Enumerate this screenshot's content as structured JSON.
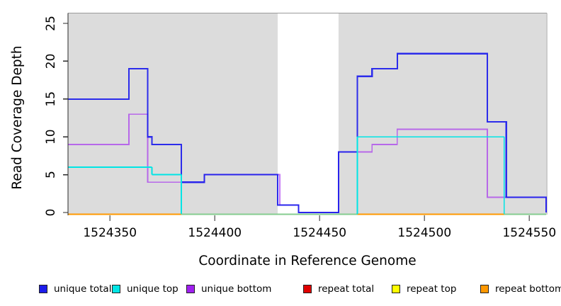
{
  "chart_data": {
    "type": "line",
    "subtype": "step",
    "title": "",
    "xlabel": "Coordinate in Reference Genome",
    "ylabel": "Read Coverage Depth",
    "xlim": [
      1524330,
      1524558
    ],
    "ylim": [
      0,
      25
    ],
    "x_ticks": [
      1524350,
      1524400,
      1524450,
      1524500,
      1524550
    ],
    "y_ticks": [
      0,
      5,
      10,
      15,
      20,
      25
    ],
    "grid": false,
    "legend_position": "bottom",
    "shaded_regions": [
      {
        "x0": 1524330,
        "x1": 1524430,
        "color": "#dcdcdc"
      },
      {
        "x0": 1524459,
        "x1": 1524558,
        "color": "#dcdcdc"
      }
    ],
    "series": [
      {
        "name": "unique total",
        "color": "#1c1ceb",
        "points": [
          [
            1524330,
            15
          ],
          [
            1524359,
            19
          ],
          [
            1524368,
            10
          ],
          [
            1524370,
            9
          ],
          [
            1524384,
            4
          ],
          [
            1524395,
            5
          ],
          [
            1524430,
            1
          ],
          [
            1524440,
            0
          ],
          [
            1524459,
            8
          ],
          [
            1524468,
            18
          ],
          [
            1524475,
            19
          ],
          [
            1524487,
            21
          ],
          [
            1524530,
            12
          ],
          [
            1524539,
            2
          ],
          [
            1524558,
            0
          ]
        ]
      },
      {
        "name": "unique top",
        "color": "#00e5e5",
        "points": [
          [
            1524330,
            6
          ],
          [
            1524370,
            5
          ],
          [
            1524384,
            0
          ],
          [
            1524468,
            10
          ],
          [
            1524538,
            0
          ],
          [
            1524558,
            0
          ]
        ]
      },
      {
        "name": "unique bottom",
        "color": "#a020f0",
        "points": [
          [
            1524330,
            9
          ],
          [
            1524359,
            13
          ],
          [
            1524368,
            4
          ],
          [
            1524395,
            5
          ],
          [
            1524431,
            1
          ],
          [
            1524440,
            0
          ],
          [
            1524459,
            8
          ],
          [
            1524475,
            9
          ],
          [
            1524487,
            11
          ],
          [
            1524530,
            2
          ],
          [
            1524558,
            0
          ]
        ]
      },
      {
        "name": "repeat total",
        "color": "#e00000",
        "points": [
          [
            1524330,
            0
          ],
          [
            1524558,
            0
          ]
        ]
      },
      {
        "name": "repeat top",
        "color": "#ffff00",
        "points": [
          [
            1524330,
            0
          ],
          [
            1524558,
            0
          ]
        ]
      },
      {
        "name": "repeat bottom",
        "color": "#ff9800",
        "points": [
          [
            1524330,
            0
          ],
          [
            1524558,
            0
          ]
        ]
      }
    ],
    "overlap_color": "#85cc8f",
    "overlap_note": "unique top and repeat lines overlap at depth 0 rendering green",
    "axis_color": "#2a2a2a",
    "box_color": "#9a9a9a"
  }
}
